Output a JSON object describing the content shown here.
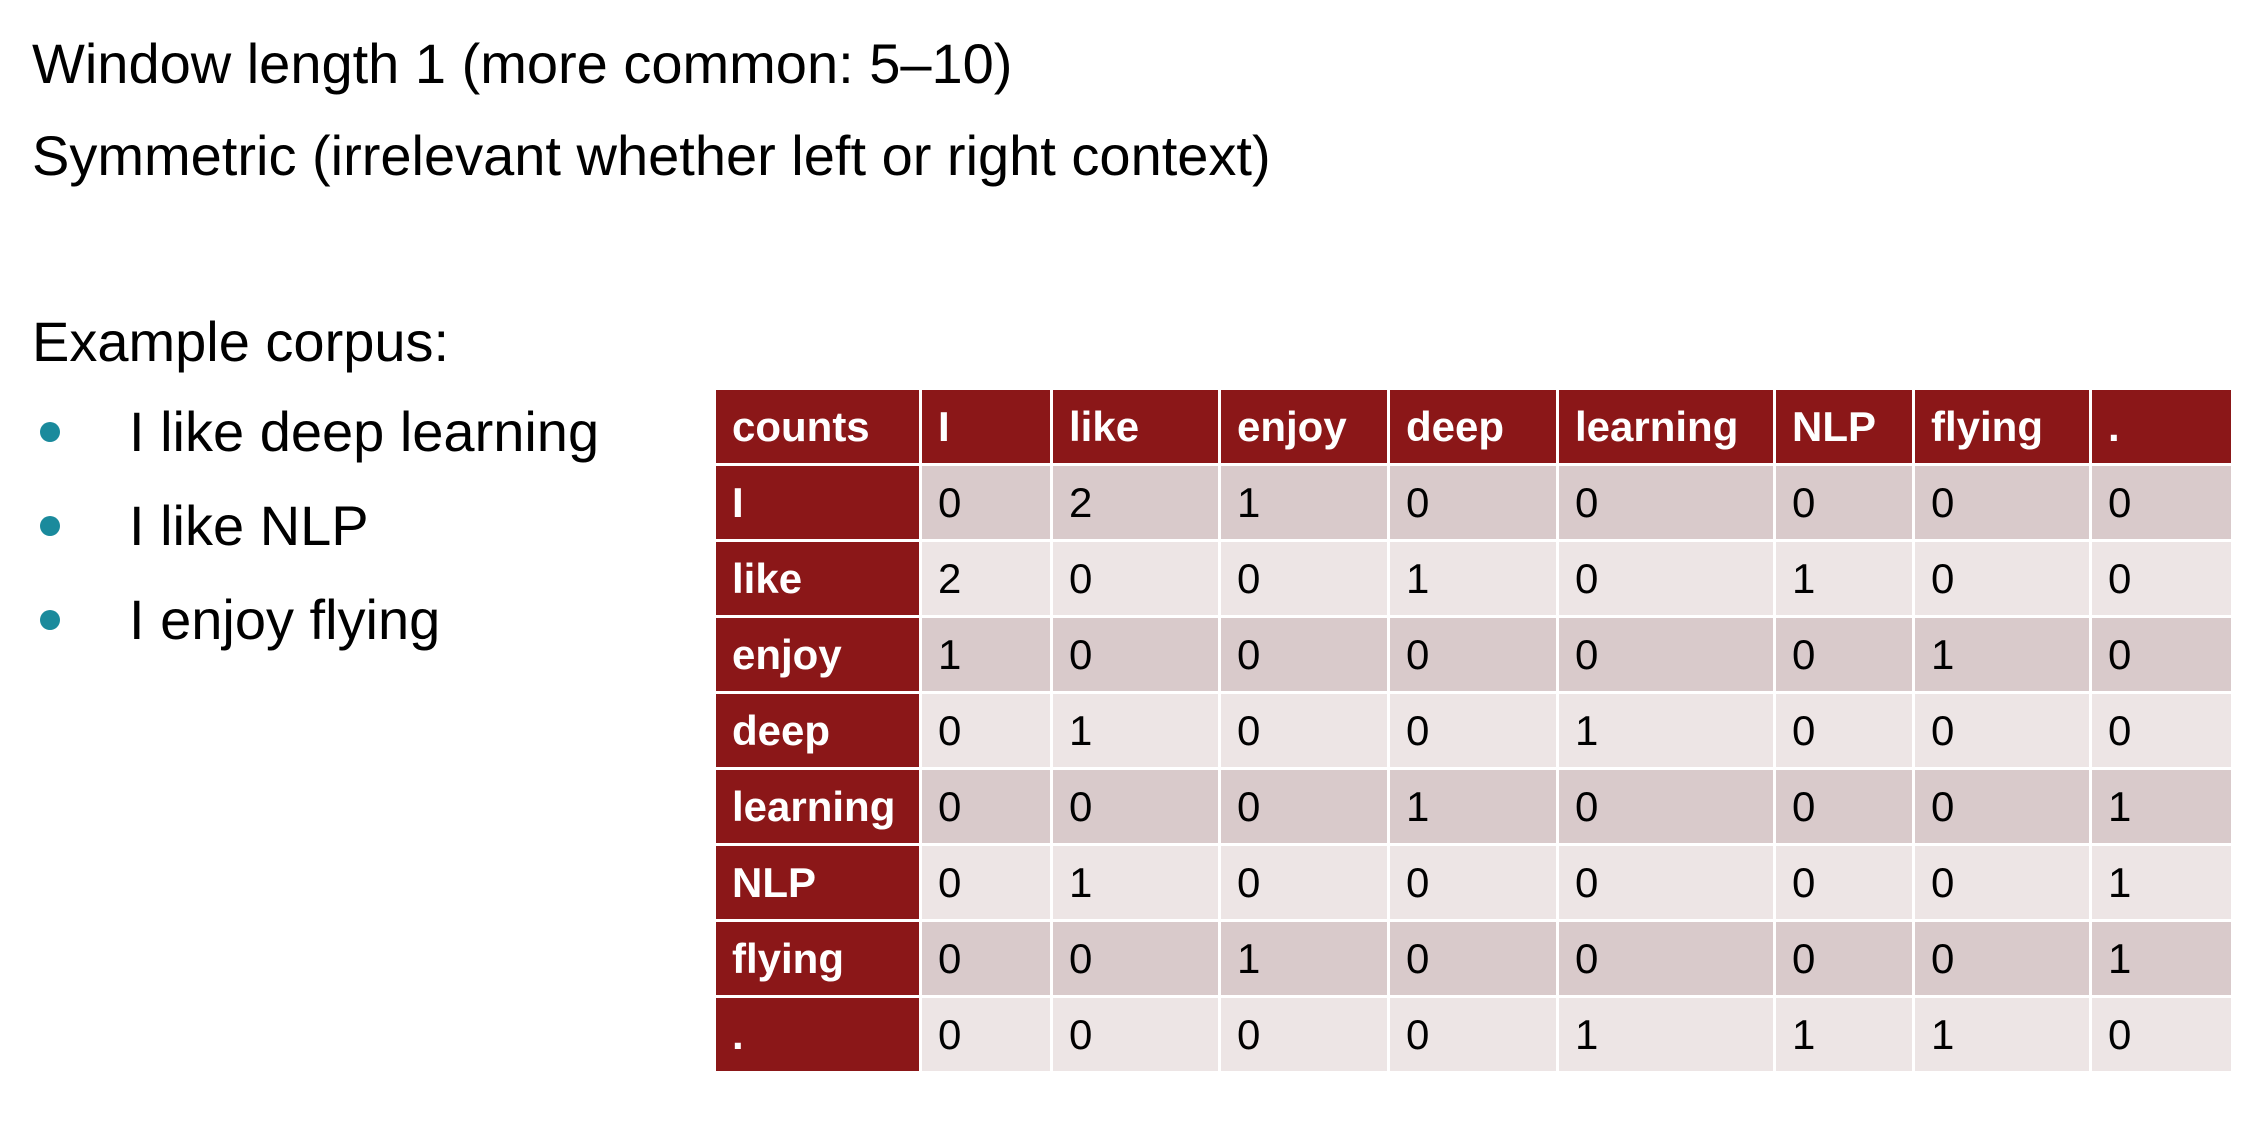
{
  "text": {
    "line1": "Window length 1 (more common: 5–10)",
    "line2": "Symmetric (irrelevant whether left or right context)",
    "corpus_heading": "Example corpus:",
    "corpus": [
      "I like deep learning",
      "I like NLP",
      "I enjoy flying"
    ]
  },
  "table": {
    "corner": "counts",
    "columns": [
      "I",
      "like",
      "enjoy",
      "deep",
      "learning",
      "NLP",
      "flying",
      "."
    ],
    "rows": [
      {
        "label": "I",
        "cells": [
          "0",
          "2",
          "1",
          "0",
          "0",
          "0",
          "0",
          "0"
        ]
      },
      {
        "label": "like",
        "cells": [
          "2",
          "0",
          "0",
          "1",
          "0",
          "1",
          "0",
          "0"
        ]
      },
      {
        "label": "enjoy",
        "cells": [
          "1",
          "0",
          "0",
          "0",
          "0",
          "0",
          "1",
          "0"
        ]
      },
      {
        "label": "deep",
        "cells": [
          "0",
          "1",
          "0",
          "0",
          "1",
          "0",
          "0",
          "0"
        ]
      },
      {
        "label": "learning",
        "cells": [
          "0",
          "0",
          "0",
          "1",
          "0",
          "0",
          "0",
          "1"
        ]
      },
      {
        "label": "NLP",
        "cells": [
          "0",
          "1",
          "0",
          "0",
          "0",
          "0",
          "0",
          "1"
        ]
      },
      {
        "label": "flying",
        "cells": [
          "0",
          "0",
          "1",
          "0",
          "0",
          "0",
          "0",
          "1"
        ]
      },
      {
        "label": ".",
        "cells": [
          "0",
          "0",
          "0",
          "0",
          "1",
          "1",
          "1",
          "0"
        ]
      }
    ]
  },
  "colors": {
    "header_bg": "#8b1718",
    "row_odd_bg": "#d9cacb",
    "row_even_bg": "#ede5e5",
    "bullet": "#1a8a9c"
  },
  "icons": {
    "bullet": "bullet-dot-icon"
  }
}
